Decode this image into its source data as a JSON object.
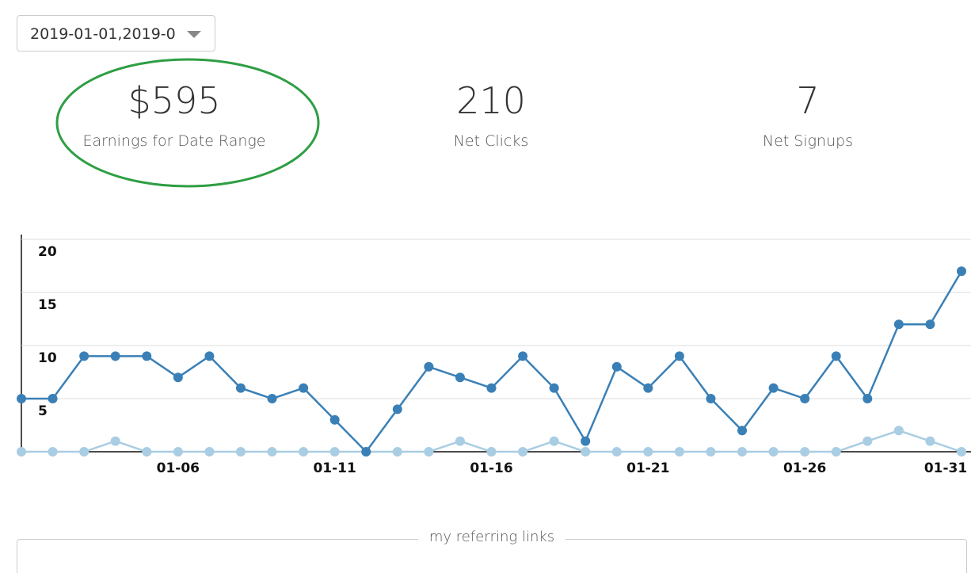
{
  "date_range": "2019-01-01,2019-0",
  "stats": [
    {
      "value": "$595",
      "label": "Earnings for Date Range"
    },
    {
      "value": 210,
      "label": "Net Clicks"
    },
    {
      "value": 7,
      "label": "Net Signups"
    }
  ],
  "chart_data": {
    "type": "line",
    "categories": [
      null,
      null,
      null,
      null,
      null,
      "01-06",
      null,
      null,
      null,
      null,
      "01-11",
      null,
      null,
      null,
      null,
      "01-16",
      null,
      null,
      null,
      null,
      "01-21",
      null,
      null,
      null,
      null,
      "01-26",
      null,
      null,
      null,
      null,
      "01-31"
    ],
    "series": [
      {
        "color": "#a9cde3",
        "values": [
          0,
          0,
          0,
          1,
          0,
          0,
          0,
          0,
          0,
          0,
          0,
          0,
          0,
          0,
          1,
          0,
          0,
          1,
          0,
          0,
          0,
          0,
          0,
          0,
          0,
          0,
          0,
          1,
          2,
          1,
          0
        ]
      },
      {
        "color": "#3a80b6",
        "values": [
          5,
          5,
          9,
          9,
          9,
          7,
          9,
          6,
          5,
          6,
          3,
          0,
          4,
          8,
          7,
          6,
          9,
          6,
          1,
          8,
          6,
          9,
          5,
          2,
          6,
          5,
          9,
          5,
          12,
          12,
          17
        ]
      }
    ],
    "ylim": [
      0,
      20
    ],
    "yticks": [
      5,
      10,
      15,
      20
    ],
    "grid": true
  },
  "links_section": {
    "title": "my referring links"
  }
}
